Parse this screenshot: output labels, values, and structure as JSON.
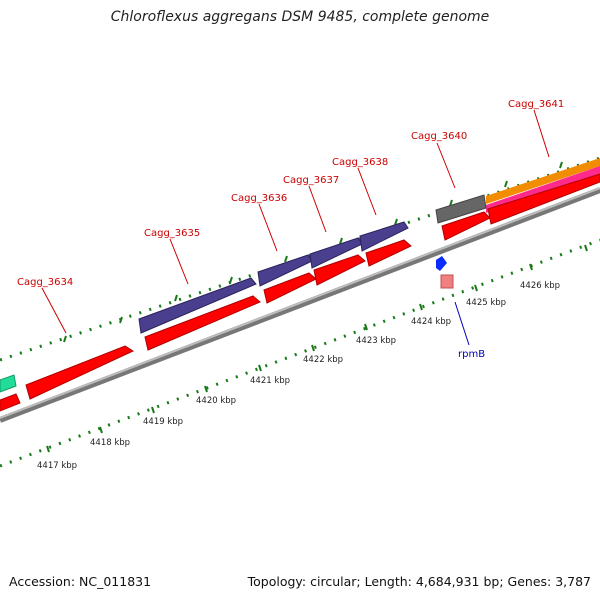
{
  "title": "Chloroflexus aggregans DSM 9485, complete genome",
  "footer": {
    "accession": "Accession: NC_011831",
    "summary": "Topology: circular; Length: 4,684,931 bp; Genes: 3,787"
  },
  "colors": {
    "cds": "#ff0000",
    "cds_dark": "#c40000",
    "gene_purple": "#4a3f8f",
    "backbone": "#999999",
    "tick_green": "#1a7a1a",
    "label_red": "#cc0000",
    "label_blue": "#0000bb"
  },
  "gene_labels": [
    {
      "id": "cagg3634",
      "text": "Cagg_3634"
    },
    {
      "id": "cagg3635",
      "text": "Cagg_3635"
    },
    {
      "id": "cagg3636",
      "text": "Cagg_3636"
    },
    {
      "id": "cagg3637",
      "text": "Cagg_3637"
    },
    {
      "id": "cagg3638",
      "text": "Cagg_3638"
    },
    {
      "id": "cagg3640",
      "text": "Cagg_3640"
    },
    {
      "id": "cagg3641",
      "text": "Cagg_3641"
    },
    {
      "id": "rpmb",
      "text": "rpmB"
    }
  ],
  "kbp_labels": [
    "4417 kbp",
    "4418 kbp",
    "4419 kbp",
    "4420 kbp",
    "4421 kbp",
    "4422 kbp",
    "4423 kbp",
    "4424 kbp",
    "4425 kbp",
    "4426 kbp"
  ]
}
